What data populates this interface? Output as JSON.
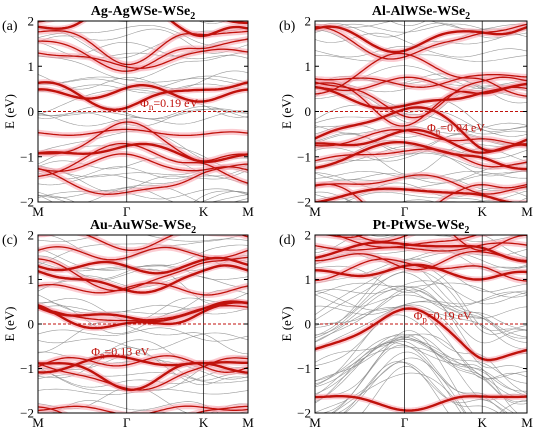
{
  "chart_data": [
    {
      "type": "line",
      "panel_label": "(a)",
      "title": "Ag-AgWSe-WSe",
      "title_sub": "2",
      "ylabel": "E (eV)",
      "ylim": [
        -2,
        2
      ],
      "yticks": [
        "-2",
        "-1",
        "0",
        "1",
        "2"
      ],
      "x_ticks": [
        "M",
        "Γ",
        "K",
        "M"
      ],
      "fermi_level": 0,
      "annotation": {
        "symbol": "Φ",
        "sub": "n",
        "text": "=0.19 eV",
        "E": 0.19,
        "k": 1.15
      },
      "band_style": "n",
      "seed": 11
    },
    {
      "type": "line",
      "panel_label": "(b)",
      "title": "Al-AlWSe-WSe",
      "title_sub": "2",
      "ylabel": "E (eV)",
      "ylim": [
        -2,
        2
      ],
      "yticks": [
        "-2",
        "-1",
        "0",
        "1",
        "2"
      ],
      "x_ticks": [
        "M",
        "Γ",
        "K",
        "M"
      ],
      "fermi_level": 0,
      "annotation": {
        "symbol": "Φ",
        "sub": "n",
        "text": "=0.04 eV",
        "E": -0.35,
        "k": 1.25
      },
      "band_style": "n-dense",
      "seed": 23
    },
    {
      "type": "line",
      "panel_label": "(c)",
      "title": "Au-AuWSe-WSe",
      "title_sub": "2",
      "ylabel": "E (eV)",
      "ylim": [
        -2,
        2
      ],
      "yticks": [
        "-2",
        "-1",
        "0",
        "1",
        "2"
      ],
      "x_ticks": [
        "M",
        "Γ",
        "K",
        "M"
      ],
      "fermi_level": 0,
      "annotation": {
        "symbol": "Φ",
        "sub": "n",
        "text": "=0.13 eV",
        "E": -0.62,
        "k": 0.6
      },
      "band_style": "n",
      "seed": 37
    },
    {
      "type": "line",
      "panel_label": "(d)",
      "title": "Pt-PtWSe-WSe",
      "title_sub": "2",
      "ylabel": "E (eV)",
      "ylim": [
        -2,
        2
      ],
      "yticks": [
        "-2",
        "-1",
        "0",
        "1",
        "2"
      ],
      "x_ticks": [
        "M",
        "Γ",
        "K",
        "M"
      ],
      "fermi_level": 0,
      "annotation": {
        "symbol": "Φ",
        "sub": "p",
        "text": "=0.19 eV",
        "E": 0.19,
        "k": 1.1
      },
      "band_style": "p",
      "seed": 53
    }
  ],
  "colors": {
    "projected_band": "#c0120c",
    "projected_glow": "#f7a3ad",
    "metal_band": "#8a8a8a",
    "annotation": "#c0120c",
    "fermi_line": "#c0120c",
    "axis": "#000000"
  }
}
